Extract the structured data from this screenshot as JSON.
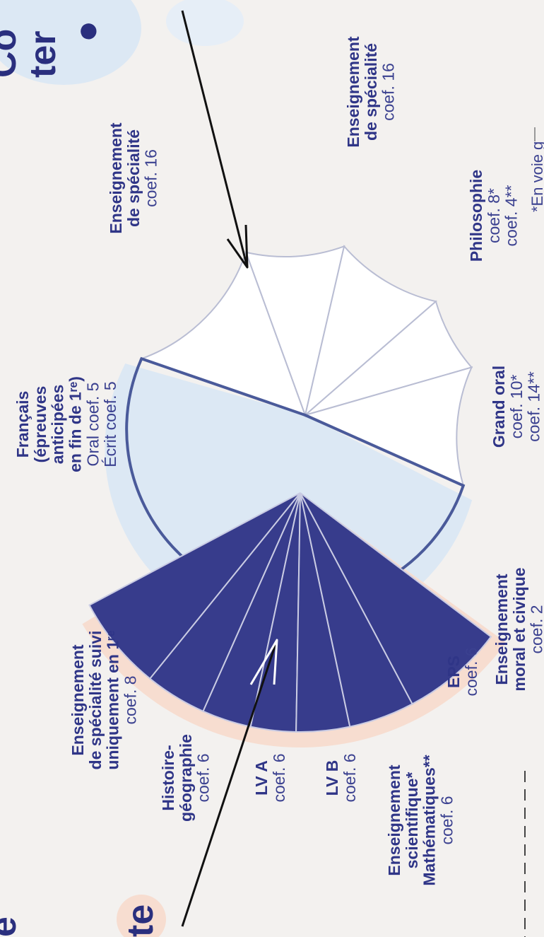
{
  "page_heading_fragments": {
    "top_line1": "Co",
    "top_line2": "ter",
    "bottom_line1": "e",
    "bottom_line2": "te"
  },
  "footnote_fragment": "*En voie g",
  "colors": {
    "navy": "#373c8c",
    "navy_label": "#2f3587",
    "white_sector": "#ffffff",
    "halo_blue": "#dce8f4",
    "halo_peach": "#f7ddd0",
    "background": "#f3f1ef"
  },
  "final_exams_chart": {
    "style": "white",
    "sectors": [
      {
        "title": [
          "Français",
          "(épreuves",
          "anticipées",
          "en fin de 1ʳᵉ)"
        ],
        "details": [
          "Oral coef. 5",
          "Écrit coef. 5"
        ]
      },
      {
        "title": [
          "Enseignement",
          "de spécialité"
        ],
        "details": [
          "coef. 16"
        ]
      },
      {
        "title": [
          "Enseignement",
          "de spécialité"
        ],
        "details": [
          "coef. 16"
        ]
      },
      {
        "title": [
          "Philosophie"
        ],
        "details": [
          "coef. 8*",
          "coef. 4**"
        ]
      },
      {
        "title": [
          "Grand oral"
        ],
        "details": [
          "coef. 10*",
          "coef. 14**"
        ]
      }
    ]
  },
  "continuous_assessment_chart": {
    "style": "navy",
    "sectors": [
      {
        "title": [
          "Enseignement",
          "de spécialité suivi",
          "uniquement en 1ʳᵉ"
        ],
        "details": [
          "coef. 8"
        ]
      },
      {
        "title": [
          "Histoire-",
          "géographie"
        ],
        "details": [
          "coef. 6"
        ]
      },
      {
        "title": [
          "LV A"
        ],
        "details": [
          "coef. 6"
        ]
      },
      {
        "title": [
          "LV B"
        ],
        "details": [
          "coef. 6"
        ]
      },
      {
        "title": [
          "Enseignement",
          "scientifique*",
          "Mathématiques**"
        ],
        "details": [
          "coef. 6"
        ]
      },
      {
        "title": [
          "EPS"
        ],
        "details": [
          "coef. 6"
        ]
      },
      {
        "title": [
          "Enseignement",
          "moral et civique"
        ],
        "details": [
          "coef. 2"
        ]
      }
    ]
  }
}
